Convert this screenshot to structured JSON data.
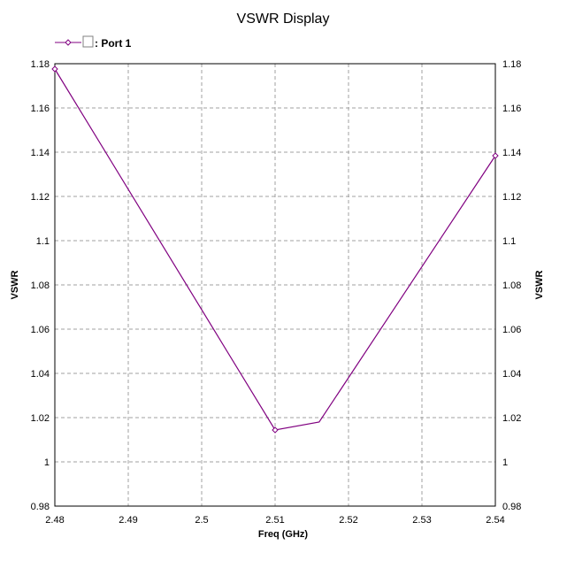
{
  "chart_data": {
    "type": "line",
    "title": "VSWR Display",
    "xlabel": "Freq (GHz)",
    "ylabel": "VSWR",
    "ylabel_right": "VSWR",
    "xlim": [
      2.48,
      2.54
    ],
    "ylim": [
      0.98,
      1.18
    ],
    "grid": true,
    "legend_placement": "top-left",
    "xticks": [
      "2.48",
      "2.49",
      "2.5",
      "2.51",
      "2.52",
      "2.53",
      "2.54"
    ],
    "yticks": [
      "0.98",
      "1",
      "1.02",
      "1.04",
      "1.06",
      "1.08",
      "1.1",
      "1.12",
      "1.14",
      "1.16",
      "1.18"
    ],
    "series": [
      {
        "name": ": Port 1",
        "color": "#800080",
        "x": [
          2.48,
          2.51,
          2.516,
          2.54
        ],
        "y": [
          1.1776,
          1.0144,
          1.018,
          1.1384
        ],
        "markers": [
          true,
          true,
          false,
          true
        ]
      }
    ]
  }
}
